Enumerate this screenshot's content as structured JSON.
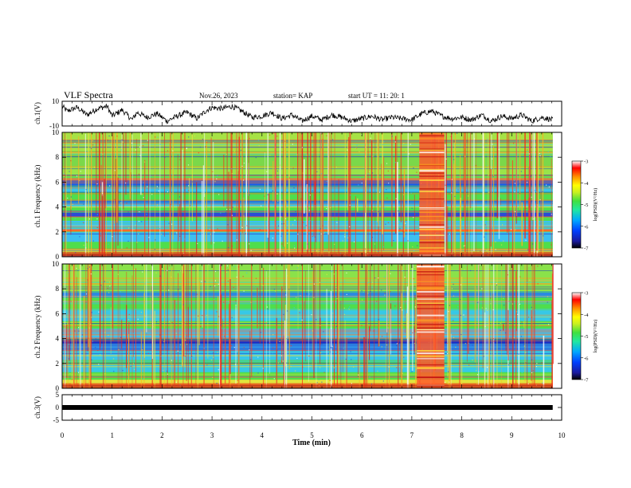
{
  "header": {
    "title": "VLF Spectra",
    "date": "Nov.26, 2023",
    "station": "station= KAP",
    "start_ut": "start  UT  =   11: 20: 1"
  },
  "chart_data": [
    {
      "type": "line",
      "name": "ch1-waveform",
      "ylabel": "ch.1(V)",
      "ylim": [
        -10,
        10
      ],
      "yticks": [
        "10",
        "-10"
      ],
      "xlim": [
        0,
        10
      ],
      "x_end": 9.82,
      "points": [
        [
          0,
          6
        ],
        [
          0.1,
          2
        ],
        [
          0.3,
          5
        ],
        [
          0.5,
          -1
        ],
        [
          0.7,
          4
        ],
        [
          0.9,
          6
        ],
        [
          1.0,
          -2
        ],
        [
          1.2,
          3
        ],
        [
          1.4,
          -5
        ],
        [
          1.5,
          1
        ],
        [
          1.7,
          -3
        ],
        [
          1.9,
          0
        ],
        [
          2.1,
          -6
        ],
        [
          2.3,
          -2
        ],
        [
          2.5,
          1
        ],
        [
          2.7,
          -4
        ],
        [
          2.9,
          3
        ],
        [
          3.0,
          5
        ],
        [
          3.2,
          4
        ],
        [
          3.4,
          6
        ],
        [
          3.6,
          2
        ],
        [
          3.8,
          -3
        ],
        [
          4.0,
          -2
        ],
        [
          4.2,
          1
        ],
        [
          4.4,
          -4
        ],
        [
          4.6,
          -1
        ],
        [
          4.8,
          -6
        ],
        [
          5.0,
          -2
        ],
        [
          5.2,
          -5
        ],
        [
          5.4,
          -1
        ],
        [
          5.6,
          -3
        ],
        [
          5.8,
          -6
        ],
        [
          6.0,
          -4
        ],
        [
          6.2,
          -2
        ],
        [
          6.4,
          -5
        ],
        [
          6.6,
          -3
        ],
        [
          6.8,
          -4
        ],
        [
          7.0,
          -5
        ],
        [
          7.2,
          0
        ],
        [
          7.4,
          2
        ],
        [
          7.6,
          -2
        ],
        [
          7.8,
          -4
        ],
        [
          8.0,
          -3
        ],
        [
          8.2,
          -5
        ],
        [
          8.4,
          -1
        ],
        [
          8.6,
          -6
        ],
        [
          8.8,
          -2
        ],
        [
          9.0,
          -4
        ],
        [
          9.2,
          -1
        ],
        [
          9.4,
          -6
        ],
        [
          9.6,
          -3
        ],
        [
          9.82,
          -5
        ]
      ]
    },
    {
      "type": "heatmap",
      "name": "ch1-spectrogram",
      "ylabel": "ch.1 Frequency (kHz)",
      "ylim": [
        0,
        10
      ],
      "yticks": [
        "0",
        "2",
        "4",
        "6",
        "8",
        "10"
      ],
      "xlim": [
        0,
        10
      ],
      "x_end": 9.82,
      "clim": [
        -7,
        -3
      ],
      "colorbar_ticks": [
        "-3",
        "-4",
        "-5",
        "-6",
        "-7"
      ],
      "colorbar_label": "log(PSD)(V²/Hz)",
      "profile": [
        [
          0,
          "#c43e1c"
        ],
        [
          0.4,
          "#e0e43c"
        ],
        [
          0.6,
          "#4fde4c"
        ],
        [
          1.2,
          "#3cc0f0"
        ],
        [
          2.0,
          "#ff6a2a"
        ],
        [
          2.2,
          "#3cc0f0"
        ],
        [
          2.9,
          "#4fde4c"
        ],
        [
          3.2,
          "#2b4bd6"
        ],
        [
          3.7,
          "#4fde4c"
        ],
        [
          4.0,
          "#37c8e6"
        ],
        [
          4.5,
          "#4fde4c"
        ],
        [
          5.2,
          "#37c8e6"
        ],
        [
          5.6,
          "#2060e0"
        ],
        [
          6.3,
          "#58e05a"
        ],
        [
          6.6,
          "#9ae44a"
        ],
        [
          7.2,
          "#7bd84a"
        ],
        [
          8.5,
          "#a6e245"
        ],
        [
          10,
          "#a6e245"
        ]
      ],
      "burst": {
        "t_start": 7.15,
        "t_end": 7.65,
        "color": "#ff5a2a"
      }
    },
    {
      "type": "heatmap",
      "name": "ch2-spectrogram",
      "ylabel": "ch.2 Frequency (kHz)",
      "ylim": [
        0,
        10
      ],
      "yticks": [
        "0",
        "2",
        "4",
        "6",
        "8",
        "10"
      ],
      "xlim": [
        0,
        10
      ],
      "x_end": 9.82,
      "clim": [
        -7,
        -3
      ],
      "colorbar_ticks": [
        "-3",
        "-4",
        "-5",
        "-6",
        "-7"
      ],
      "colorbar_label": "log(PSD)(V²/Hz)",
      "profile": [
        [
          0,
          "#c43e1c"
        ],
        [
          0.4,
          "#e0e43c"
        ],
        [
          0.7,
          "#4fde4c"
        ],
        [
          1.3,
          "#37c8e6"
        ],
        [
          1.9,
          "#4fde4c"
        ],
        [
          2.3,
          "#37c8e6"
        ],
        [
          3.0,
          "#2b7be0"
        ],
        [
          3.6,
          "#1b2ec8"
        ],
        [
          4.0,
          "#3cc0f0"
        ],
        [
          4.8,
          "#4fde4c"
        ],
        [
          5.4,
          "#37c8e6"
        ],
        [
          6.4,
          "#4fde4c"
        ],
        [
          7.3,
          "#2b8ae0"
        ],
        [
          7.8,
          "#8ae24a"
        ],
        [
          10,
          "#9ee448"
        ]
      ],
      "burst": {
        "t_start": 7.1,
        "t_end": 7.65,
        "color": "#ff5a2a"
      }
    },
    {
      "type": "line",
      "name": "ch3-waveform",
      "ylabel": "ch.3(V)",
      "ylim": [
        -5,
        5
      ],
      "yticks": [
        "5",
        "0",
        "-5"
      ],
      "xlim": [
        0,
        10
      ],
      "x_end": 9.82,
      "flat_value": 0
    }
  ],
  "xaxis": {
    "label": "Time (min)",
    "ticks": [
      "0",
      "1",
      "2",
      "3",
      "4",
      "5",
      "6",
      "7",
      "8",
      "9",
      "10"
    ]
  },
  "colors": {
    "colormap": [
      "#000000",
      "#1a1aa0",
      "#0040ff",
      "#00a8ff",
      "#20e8a0",
      "#40e040",
      "#c8f020",
      "#ffff00",
      "#ff9000",
      "#ff0000",
      "#ffffff"
    ]
  }
}
